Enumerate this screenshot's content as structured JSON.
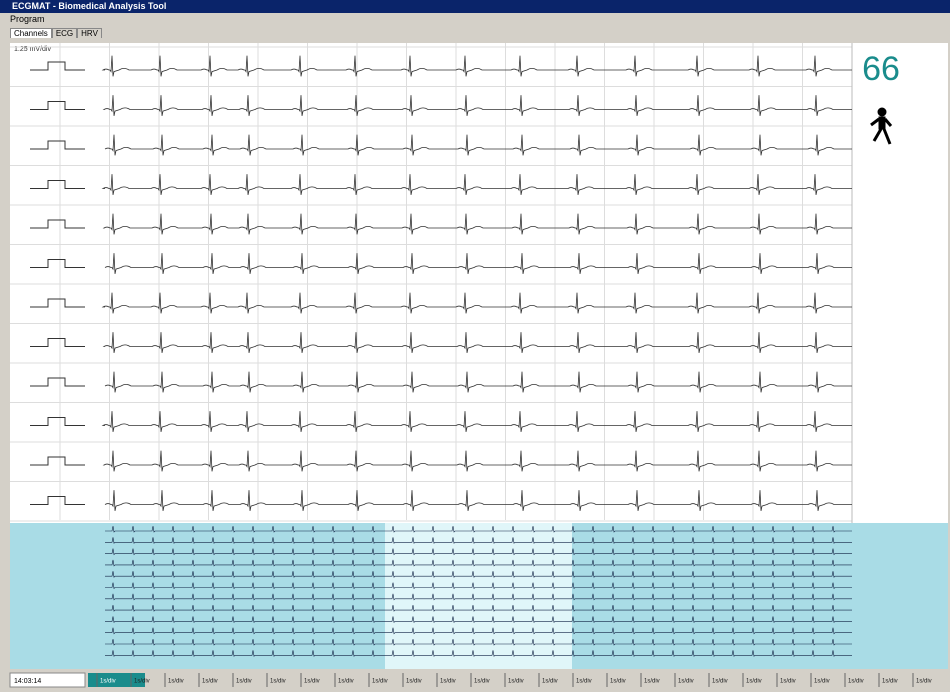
{
  "window": {
    "title": "ECGMAT - Biomedical Analysis Tool"
  },
  "menu": [
    "Program"
  ],
  "tabs": [
    "Channels",
    "ECG",
    "HRV"
  ],
  "scale_label": "1.25 mV/div",
  "heart_rate": "66",
  "status": {
    "time": "14:03:14",
    "timeline": [
      "1s/div",
      "1s/div",
      "1s/div",
      "1s/div",
      "1s/div",
      "1s/div",
      "1s/div",
      "1s/div",
      "1s/div",
      "1s/div",
      "1s/div",
      "1s/div",
      "1s/div",
      "1s/div",
      "1s/div",
      "1s/div",
      "1s/div",
      "1s/div",
      "1s/div",
      "1s/div",
      "1s/div",
      "1s/div",
      "1s/div",
      "1s/div",
      "1s/div"
    ]
  }
}
